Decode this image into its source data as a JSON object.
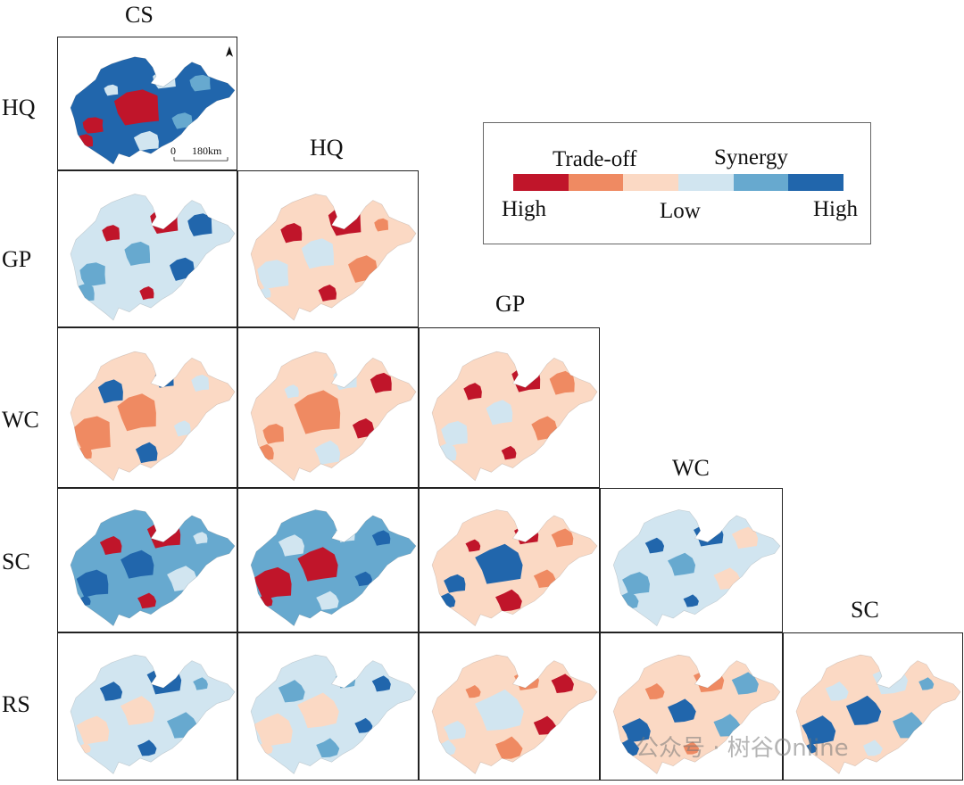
{
  "column_labels": [
    "CS",
    "HQ",
    "GP",
    "WC",
    "SC"
  ],
  "row_labels": [
    "HQ",
    "GP",
    "WC",
    "SC",
    "RS"
  ],
  "legend": {
    "trade_off": "Trade-off",
    "synergy": "Synergy",
    "high_left": "High",
    "low": "Low",
    "high_right": "High",
    "colors": [
      "#c0152a",
      "#ef8a62",
      "#fbd9c4",
      "#d1e5f0",
      "#67a9cf",
      "#2166ac"
    ]
  },
  "scale_bar": {
    "zero": "0",
    "distance": "180km"
  },
  "north_arrow_icon": "north-arrow-icon",
  "watermark": "公众号 · 树谷Online",
  "panels": [
    {
      "row": 0,
      "col": 0,
      "dominant": "#2166ac",
      "accents": [
        "#c0152a",
        "#d1e5f0",
        "#67a9cf"
      ]
    },
    {
      "row": 1,
      "col": 0,
      "dominant": "#d1e5f0",
      "accents": [
        "#2166ac",
        "#67a9cf",
        "#c0152a"
      ]
    },
    {
      "row": 1,
      "col": 1,
      "dominant": "#fbd9c4",
      "accents": [
        "#c0152a",
        "#ef8a62",
        "#d1e5f0"
      ]
    },
    {
      "row": 2,
      "col": 0,
      "dominant": "#fbd9c4",
      "accents": [
        "#ef8a62",
        "#2166ac",
        "#d1e5f0"
      ]
    },
    {
      "row": 2,
      "col": 1,
      "dominant": "#fbd9c4",
      "accents": [
        "#c0152a",
        "#ef8a62",
        "#d1e5f0"
      ]
    },
    {
      "row": 2,
      "col": 2,
      "dominant": "#fbd9c4",
      "accents": [
        "#c0152a",
        "#ef8a62",
        "#d1e5f0"
      ]
    },
    {
      "row": 3,
      "col": 0,
      "dominant": "#67a9cf",
      "accents": [
        "#2166ac",
        "#c0152a",
        "#d1e5f0"
      ]
    },
    {
      "row": 3,
      "col": 1,
      "dominant": "#67a9cf",
      "accents": [
        "#2166ac",
        "#c0152a",
        "#d1e5f0"
      ]
    },
    {
      "row": 3,
      "col": 2,
      "dominant": "#fbd9c4",
      "accents": [
        "#c0152a",
        "#ef8a62",
        "#2166ac"
      ]
    },
    {
      "row": 3,
      "col": 3,
      "dominant": "#d1e5f0",
      "accents": [
        "#67a9cf",
        "#2166ac",
        "#fbd9c4"
      ]
    },
    {
      "row": 4,
      "col": 0,
      "dominant": "#d1e5f0",
      "accents": [
        "#67a9cf",
        "#fbd9c4",
        "#2166ac"
      ]
    },
    {
      "row": 4,
      "col": 1,
      "dominant": "#d1e5f0",
      "accents": [
        "#67a9cf",
        "#2166ac",
        "#fbd9c4"
      ]
    },
    {
      "row": 4,
      "col": 2,
      "dominant": "#fbd9c4",
      "accents": [
        "#d1e5f0",
        "#ef8a62",
        "#c0152a"
      ]
    },
    {
      "row": 4,
      "col": 3,
      "dominant": "#fbd9c4",
      "accents": [
        "#67a9cf",
        "#2166ac",
        "#ef8a62"
      ]
    },
    {
      "row": 4,
      "col": 4,
      "dominant": "#fbd9c4",
      "accents": [
        "#d1e5f0",
        "#67a9cf",
        "#2166ac"
      ]
    }
  ]
}
